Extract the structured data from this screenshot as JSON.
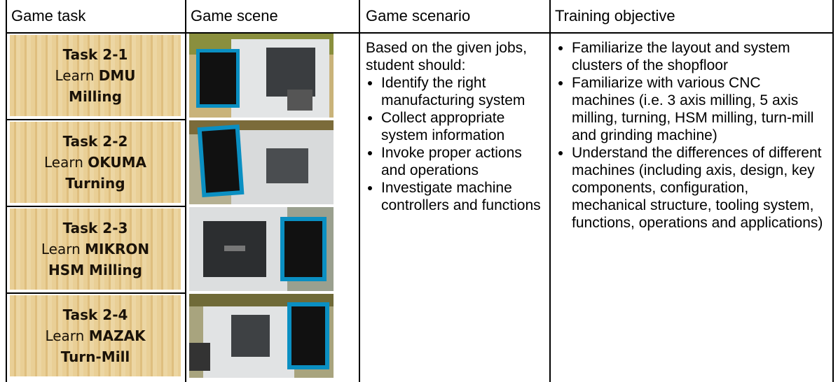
{
  "header": [
    "Game task",
    "Game scene",
    "Game scenario",
    "Training objective"
  ],
  "tasks": [
    {
      "title": "Task 2-1",
      "learn": "Learn",
      "name_line1": "DMU",
      "name_line2": "Milling"
    },
    {
      "title": "Task 2-2",
      "learn": "Learn",
      "name_line1": "OKUMA",
      "name_line2": "Turning"
    },
    {
      "title": "Task 2-3",
      "learn": "Learn",
      "name_line1": "MIKRON",
      "name_line2": "HSM Milling"
    },
    {
      "title": "Task 2-4",
      "learn": "Learn",
      "name_line1": "MAZAK",
      "name_line2": "Turn-Mill"
    }
  ],
  "scenario": {
    "intro": "Based on the given jobs, student should:",
    "bullets": [
      "Identify the right manufacturing system",
      "Collect appropriate system information",
      "Invoke proper actions and operations",
      "Investigate machine controllers and functions"
    ]
  },
  "objective": {
    "bullets": [
      "Familiarize the layout and system clusters of the shopfloor",
      "Familiarize with various CNC machines (i.e. 3 axis milling, 5 axis milling, turning, HSM milling, turn-mill and grinding machine)",
      "Understand the differences of different machines (including axis, design, key components, configuration, mechanical structure, tooling system, functions, operations and applications)"
    ]
  }
}
